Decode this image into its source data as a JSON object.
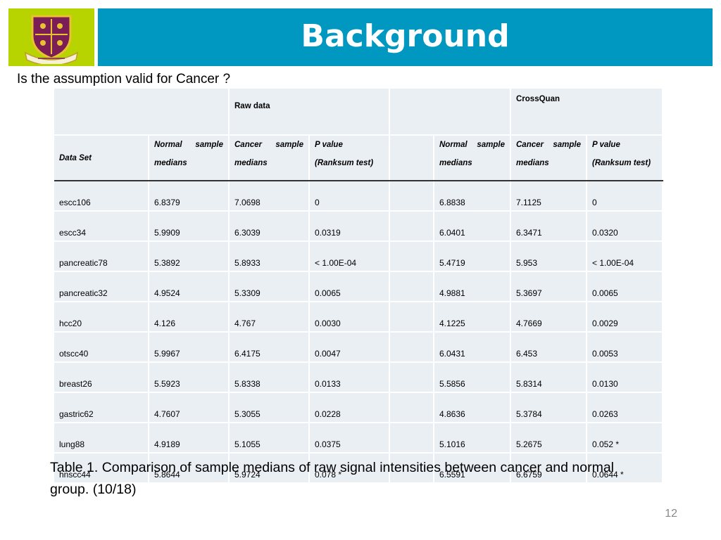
{
  "header": {
    "title": "Background"
  },
  "subtitle": "Is the assumption valid for Cancer ?",
  "table": {
    "group_raw": "Raw data",
    "group_crossquan": "CrossQuan",
    "col_dataset": "Data Set",
    "raw_normal_line1": "Normal sample",
    "raw_normal_line2": "medians",
    "raw_cancer_line1": "Cancer sample",
    "raw_cancer_line2": "medians",
    "raw_p_line1": "P value",
    "raw_p_line2": "(Ranksum test)",
    "cq_normal_line1": "Normal sample",
    "cq_normal_line2": "medians",
    "cq_cancer_line1": "Cancer sample",
    "cq_cancer_line2": "medians",
    "cq_p_line1": "P value",
    "cq_p_line2": "(Ranksum test)",
    "rows": [
      {
        "name": "escc106",
        "raw_normal": "6.8379",
        "raw_cancer": "7.0698",
        "raw_p": "0",
        "cq_normal": "6.8838",
        "cq_cancer": "7.1125",
        "cq_p": "0"
      },
      {
        "name": "escc34",
        "raw_normal": "5.9909",
        "raw_cancer": "6.3039",
        "raw_p": "0.0319",
        "cq_normal": "6.0401",
        "cq_cancer": "6.3471",
        "cq_p": "0.0320"
      },
      {
        "name": "pancreatic78",
        "raw_normal": "5.3892",
        "raw_cancer": "5.8933",
        "raw_p": "< 1.00E-04",
        "cq_normal": "5.4719",
        "cq_cancer": "5.953",
        "cq_p": "< 1.00E-04"
      },
      {
        "name": "pancreatic32",
        "raw_normal": "4.9524",
        "raw_cancer": "5.3309",
        "raw_p": "0.0065",
        "cq_normal": "4.9881",
        "cq_cancer": "5.3697",
        "cq_p": "0.0065"
      },
      {
        "name": "hcc20",
        "raw_normal": "4.126",
        "raw_cancer": "4.767",
        "raw_p": "0.0030",
        "cq_normal": "4.1225",
        "cq_cancer": "4.7669",
        "cq_p": "0.0029"
      },
      {
        "name": "otscc40",
        "raw_normal": "5.9967",
        "raw_cancer": "6.4175",
        "raw_p": "0.0047",
        "cq_normal": "6.0431",
        "cq_cancer": "6.453",
        "cq_p": "0.0053"
      },
      {
        "name": "breast26",
        "raw_normal": "5.5923",
        "raw_cancer": "5.8338",
        "raw_p": "0.0133",
        "cq_normal": "5.5856",
        "cq_cancer": "5.8314",
        "cq_p": "0.0130"
      },
      {
        "name": "gastric62",
        "raw_normal": "4.7607",
        "raw_cancer": "5.3055",
        "raw_p": "0.0228",
        "cq_normal": "4.8636",
        "cq_cancer": "5.3784",
        "cq_p": "0.0263"
      },
      {
        "name": "lung88",
        "raw_normal": "4.9189",
        "raw_cancer": "5.1055",
        "raw_p": "0.0375",
        "cq_normal": "5.1016",
        "cq_cancer": "5.2675",
        "cq_p": "0.052 *"
      },
      {
        "name": "hnscc44",
        "raw_normal": "5.8644",
        "raw_cancer": "5.9724",
        "raw_p": "0.078 *",
        "cq_normal": "6.5591",
        "cq_cancer": "6.6759",
        "cq_p": "0.0644 *"
      }
    ]
  },
  "caption": "Table 1. Comparison of sample medians of raw signal intensities between cancer and normal group. (10/18)",
  "page_number": "12",
  "colors": {
    "title_bar": "#0097c0",
    "logo_bg": "#b8d400",
    "table_cell": "#eaeff4"
  },
  "icons": {
    "logo": "university-crest-icon"
  }
}
